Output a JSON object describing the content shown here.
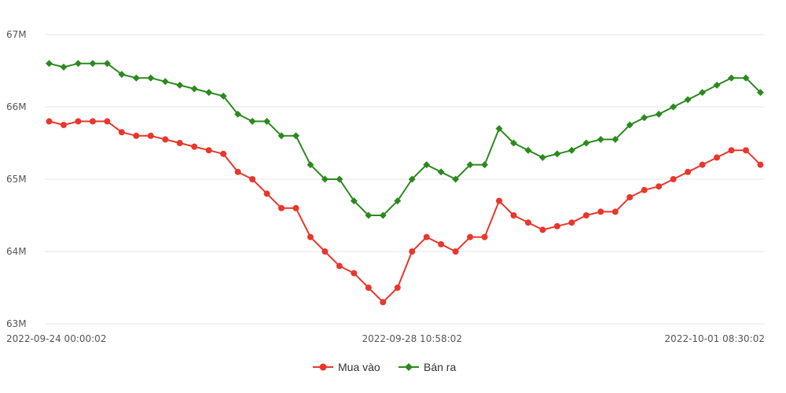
{
  "chart_data": {
    "type": "line",
    "title": "",
    "xlabel": "",
    "ylabel": "",
    "y_ticks": [
      "67M",
      "66M",
      "65M",
      "64M",
      "63M"
    ],
    "y_tick_values": [
      67000000,
      66000000,
      65000000,
      64000000,
      63000000
    ],
    "ylim": [
      63000000,
      67000000
    ],
    "x_tick_labels": [
      "2022-09-24 00:00:02",
      "2022-09-28 10:58:02",
      "2022-10-01 08:30:02"
    ],
    "x_tick_indices": [
      0,
      25,
      50
    ],
    "grid": true,
    "legend_position": "bottom-center",
    "series": [
      {
        "name": "Mua vào",
        "color": "#e8372c",
        "marker": "circle",
        "values": [
          65800000,
          65750000,
          65800000,
          65800000,
          65800000,
          65650000,
          65600000,
          65600000,
          65550000,
          65500000,
          65450000,
          65400000,
          65350000,
          65100000,
          65000000,
          64800000,
          64600000,
          64600000,
          64200000,
          64000000,
          63800000,
          63700000,
          63500000,
          63300000,
          63500000,
          64000000,
          64200000,
          64100000,
          64000000,
          64200000,
          64200000,
          64700000,
          64500000,
          64400000,
          64300000,
          64350000,
          64400000,
          64500000,
          64550000,
          64550000,
          64750000,
          64850000,
          64900000,
          65000000,
          65100000,
          65200000,
          65300000,
          65400000,
          65400000,
          65200000
        ]
      },
      {
        "name": "Bán ra",
        "color": "#2b8a1e",
        "marker": "diamond",
        "values": [
          66600000,
          66550000,
          66600000,
          66600000,
          66600000,
          66450000,
          66400000,
          66400000,
          66350000,
          66300000,
          66250000,
          66200000,
          66150000,
          65900000,
          65800000,
          65800000,
          65600000,
          65600000,
          65200000,
          65000000,
          65000000,
          64700000,
          64500000,
          64500000,
          64700000,
          65000000,
          65200000,
          65100000,
          65000000,
          65200000,
          65200000,
          65700000,
          65500000,
          65400000,
          65300000,
          65350000,
          65400000,
          65500000,
          65550000,
          65550000,
          65750000,
          65850000,
          65900000,
          66000000,
          66100000,
          66200000,
          66300000,
          66400000,
          66400000,
          66200000
        ]
      }
    ]
  }
}
